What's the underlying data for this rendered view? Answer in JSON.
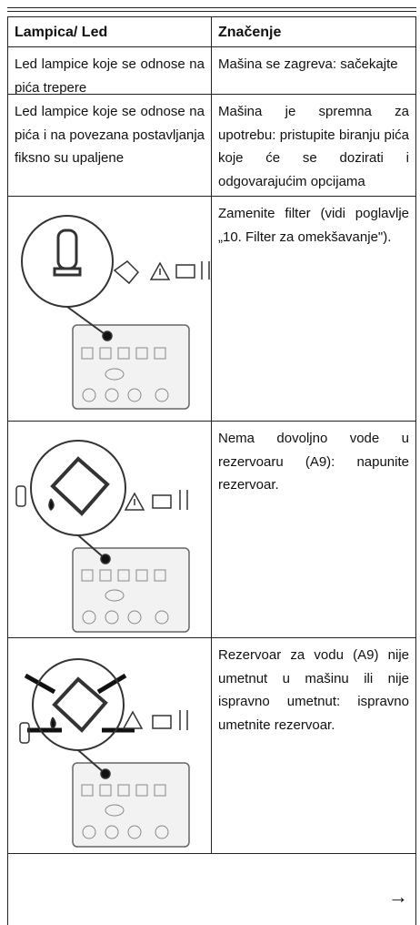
{
  "table": {
    "header": [
      "Lampica/ Led",
      "Značenje"
    ],
    "rows": [
      {
        "light": "Led lampice koje se odnose na pića trepere",
        "meaning": "Mašina se zagreva: sačekajte"
      },
      {
        "light": "Led lampice koje se odnose na pića i na povezana postavljanja fiksno su upaljene",
        "meaning": "Mašina je spremna za upotrebu: pristupite biranju pića koje će se dozirati i odgovarajućim opcijama"
      },
      {
        "meaning": "Zamenite filter (vidi poglavlje „10. Filter za omekšavanje\")."
      },
      {
        "meaning": "Nema dovoljno vode u rezervoaru (A9): napunite rezervoar."
      },
      {
        "meaning": "Rezervoar za vodu (A9) nije umetnut u mašinu ili nije ispravno umetnut: ispravno umetnite rezervoar."
      }
    ],
    "next": "→"
  }
}
